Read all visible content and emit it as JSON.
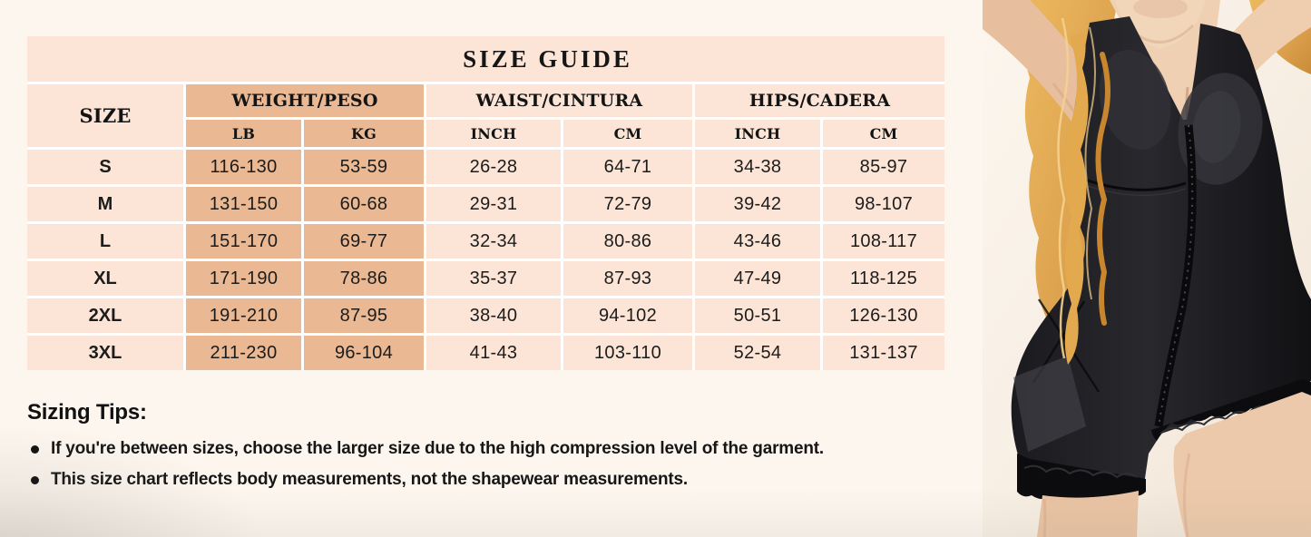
{
  "title": "SIZE GUIDE",
  "size_table": {
    "headers": {
      "size": "SIZE",
      "weight": "WEIGHT/PESO",
      "waist": "WAIST/CINTURA",
      "hips": "HIPS/CADERA",
      "lb": "LB",
      "kg": "KG",
      "waist_inch": "INCH",
      "waist_cm": "CM",
      "hips_inch": "INCH",
      "hips_cm": "CM"
    },
    "rows": [
      {
        "cells": [
          "S",
          "116-130",
          "53-59",
          "26-28",
          "64-71",
          "34-38",
          "85-97"
        ]
      },
      {
        "cells": [
          "M",
          "131-150",
          "60-68",
          "29-31",
          "72-79",
          "39-42",
          "98-107"
        ]
      },
      {
        "cells": [
          "L",
          "151-170",
          "69-77",
          "32-34",
          "80-86",
          "43-46",
          "108-117"
        ]
      },
      {
        "cells": [
          "XL",
          "171-190",
          "78-86",
          "35-37",
          "87-93",
          "47-49",
          "118-125"
        ]
      },
      {
        "cells": [
          "2XL",
          "191-210",
          "87-95",
          "38-40",
          "94-102",
          "50-51",
          "126-130"
        ]
      },
      {
        "cells": [
          "3XL",
          "211-230",
          "96-104",
          "41-43",
          "103-110",
          "52-54",
          "131-137"
        ]
      }
    ]
  },
  "tips": {
    "heading": "Sizing Tips:",
    "items": [
      "If you're between sizes, choose the larger size due to the high compression level of the garment.",
      "This size chart reflects body measurements, not the shapewear measurements."
    ]
  },
  "icons": {
    "model_photo": "woman-wearing-black-shapewear-bodysuit"
  },
  "colors": {
    "page_bg": "#fcf6ee",
    "table_pink": "#fce5d6",
    "table_peach": "#eab892",
    "text": "#1c1c1c",
    "suit_black": "#1a1a1e",
    "hair_blonde": "#dca14e",
    "skin": "#eac7a8"
  }
}
